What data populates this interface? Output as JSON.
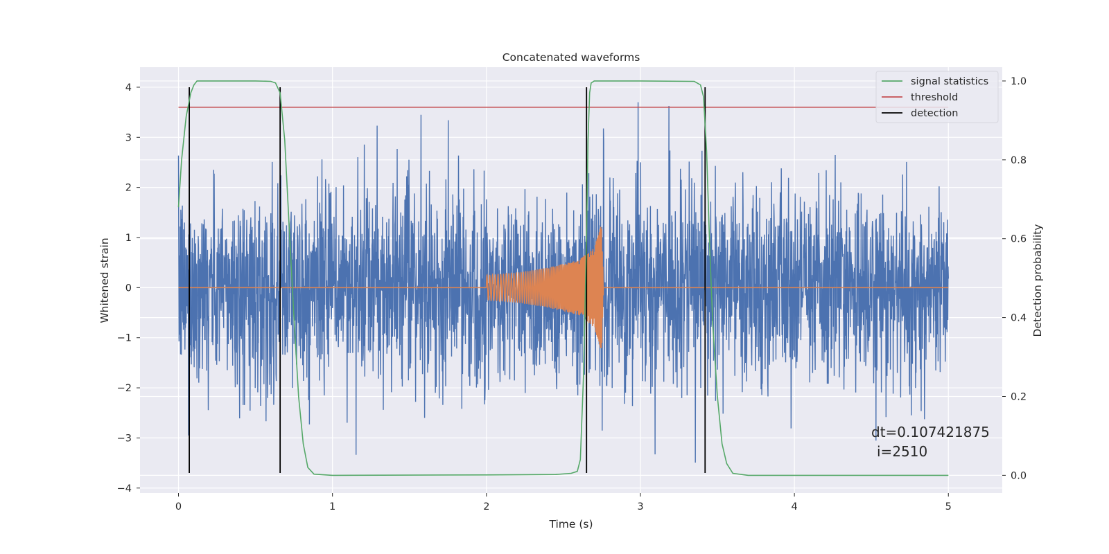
{
  "chart_data": {
    "type": "line",
    "title": "Concatenated waveforms",
    "xlabel": "Time (s)",
    "ylabel_left": "Whitened strain",
    "ylabel_right": "Detection probability",
    "xlim": [
      -0.25,
      5.35
    ],
    "ylim_left": [
      -4.1,
      4.4
    ],
    "ylim_right": [
      -0.045,
      1.035
    ],
    "x_ticks": [
      0,
      1,
      2,
      3,
      4,
      5
    ],
    "y_ticks_left": [
      4,
      3,
      2,
      1,
      0,
      -1,
      -2,
      -3,
      -4
    ],
    "y_tick_labels_left": [
      "4",
      "3",
      "2",
      "1",
      "0",
      "−1",
      "−2",
      "−3",
      "−4"
    ],
    "y_ticks_right": [
      1.0,
      0.8,
      0.6,
      0.4,
      0.2,
      0.0
    ],
    "y_tick_labels_right": [
      "1.0",
      "0.8",
      "0.6",
      "0.4",
      "0.2",
      "0.0"
    ],
    "grid": true,
    "legend_position": "top-right",
    "legend": [
      "signal statistics",
      "threshold",
      "detection"
    ],
    "annotation": [
      "dt=0.107421875",
      "i=2510"
    ],
    "colors": {
      "background": "#eaeaf2",
      "grid": "#ffffff",
      "strain": "#4c72b0",
      "chirp": "#dd8452",
      "signal_statistics": "#55a868",
      "threshold": "#c44e52",
      "detection": "#000000"
    },
    "series": [
      {
        "name": "signal statistics",
        "axis": "right",
        "x": [
          0.0,
          0.02,
          0.05,
          0.08,
          0.1,
          0.12,
          0.15,
          0.2,
          0.5,
          0.6,
          0.63,
          0.66,
          0.69,
          0.72,
          0.75,
          0.78,
          0.81,
          0.84,
          0.88,
          1.0,
          2.0,
          2.45,
          2.55,
          2.59,
          2.61,
          2.63,
          2.65,
          2.66,
          2.67,
          2.68,
          2.7,
          2.75,
          3.0,
          3.35,
          3.39,
          3.41,
          3.43,
          3.45,
          3.47,
          3.5,
          3.53,
          3.56,
          3.6,
          3.7,
          4.0,
          5.0
        ],
        "y": [
          0.68,
          0.8,
          0.91,
          0.97,
          0.99,
          1.0,
          1.0,
          1.0,
          1.0,
          0.999,
          0.995,
          0.97,
          0.85,
          0.62,
          0.4,
          0.2,
          0.08,
          0.02,
          0.003,
          0.0,
          0.001,
          0.002,
          0.005,
          0.01,
          0.04,
          0.25,
          0.6,
          0.85,
          0.97,
          0.995,
          1.0,
          1.0,
          1.0,
          0.999,
          0.99,
          0.96,
          0.82,
          0.58,
          0.38,
          0.2,
          0.08,
          0.03,
          0.005,
          0.0,
          0.0,
          0.0
        ]
      },
      {
        "name": "threshold",
        "axis": "left",
        "x": [
          0,
          5
        ],
        "y": [
          3.6,
          3.6
        ]
      },
      {
        "name": "detection",
        "axis": "left",
        "x": [
          0.07,
          0.66,
          2.65,
          3.42
        ],
        "y_range": [
          -3.7,
          4.0
        ]
      },
      {
        "name": "",
        "axis": "left",
        "kind": "chirp",
        "x": [
          0,
          1.99,
          2.0,
          2.2,
          2.4,
          2.6,
          2.7,
          2.75,
          2.76,
          5.0
        ],
        "amplitude": [
          0,
          0,
          0.25,
          0.3,
          0.4,
          0.55,
          0.8,
          1.3,
          0,
          0
        ]
      },
      {
        "name": "",
        "axis": "left",
        "kind": "noise",
        "x_range": [
          0,
          5
        ],
        "typical_amplitude": 1.0,
        "min": -3.7,
        "max": 3.7
      }
    ]
  }
}
